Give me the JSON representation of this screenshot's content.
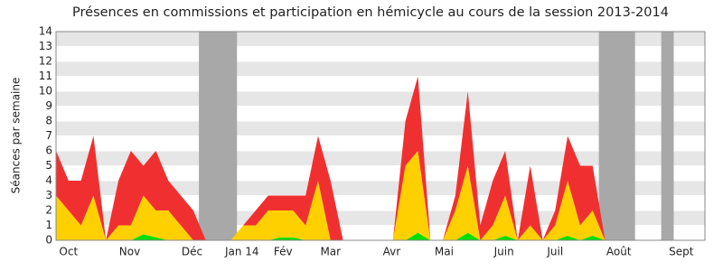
{
  "chart_data": {
    "type": "stacked-area",
    "title": "Présences en commissions et participation en hémicycle au cours de la session 2013-2014",
    "ylabel": "Séances par semaine",
    "x": [
      0,
      1,
      2,
      3,
      4,
      5,
      6,
      7,
      8,
      9,
      10,
      11,
      12,
      13,
      14,
      15,
      16,
      17,
      18,
      19,
      20,
      21,
      22,
      23,
      24,
      25,
      26,
      27,
      28,
      29,
      30,
      31,
      32,
      33,
      34,
      35,
      36,
      37,
      38,
      39,
      40,
      41,
      42,
      43,
      44,
      45,
      46,
      47,
      48,
      49,
      50,
      51,
      52
    ],
    "series": [
      {
        "color": "#00e000",
        "values": [
          0,
          0,
          0,
          0,
          0,
          0,
          0,
          0.4,
          0.2,
          0,
          0,
          0,
          0,
          0,
          0,
          0,
          0,
          0,
          0.2,
          0.2,
          0,
          0,
          0,
          0,
          0,
          0,
          0,
          0,
          0,
          0.5,
          0,
          0,
          0,
          0.5,
          0,
          0,
          0.3,
          0,
          0,
          0,
          0,
          0.3,
          0,
          0.3,
          0,
          0,
          0,
          0,
          0,
          0,
          0,
          0,
          0
        ]
      },
      {
        "color": "#ffd000",
        "values": [
          3,
          2,
          1,
          3,
          0,
          1,
          1,
          2.6,
          1.8,
          2,
          1,
          0,
          0,
          0,
          0,
          1,
          1,
          2,
          1.8,
          1.8,
          1,
          4,
          0,
          0,
          0,
          0,
          0,
          0,
          5,
          5.5,
          0,
          0,
          2,
          4.5,
          0,
          1,
          2.7,
          0,
          1,
          0,
          1,
          3.7,
          1,
          1.7,
          0,
          0,
          0,
          0,
          0,
          0,
          0,
          0,
          0
        ]
      },
      {
        "color": "#f03030",
        "values": [
          3,
          2,
          3,
          4,
          0,
          3,
          5,
          2,
          4,
          2,
          2,
          2,
          0,
          0,
          0,
          0,
          1,
          1,
          1,
          1,
          2,
          3,
          4,
          0,
          0,
          0,
          0,
          0,
          3,
          5,
          0,
          0,
          1,
          5,
          1,
          3,
          3,
          0,
          4,
          0,
          1,
          3,
          4,
          3,
          0,
          0,
          0,
          0,
          0,
          0,
          0,
          0,
          0
        ]
      }
    ],
    "xlim": [
      0,
      52
    ],
    "xticks": [
      {
        "value": 1,
        "label": "Oct"
      },
      {
        "value": 5.9,
        "label": "Nov"
      },
      {
        "value": 10.9,
        "label": "Déc"
      },
      {
        "value": 14.9,
        "label": "Jan 14"
      },
      {
        "value": 18.2,
        "label": "Fév"
      },
      {
        "value": 22,
        "label": "Mar"
      },
      {
        "value": 26.9,
        "label": "Avr"
      },
      {
        "value": 31.1,
        "label": "Mai"
      },
      {
        "value": 35.9,
        "label": "Juin"
      },
      {
        "value": 40,
        "label": "Juil"
      },
      {
        "value": 45.1,
        "label": "Août"
      },
      {
        "value": 50.1,
        "label": "Sept"
      }
    ],
    "bands": [
      [
        11.45,
        14.5
      ],
      [
        43.5,
        46.4
      ],
      [
        48.5,
        49.5
      ]
    ],
    "band_color": "#a8a8a8",
    "ylim": [
      0,
      14
    ],
    "yticks": [
      0,
      1,
      2,
      3,
      4,
      5,
      6,
      7,
      8,
      9,
      10,
      11,
      12,
      13,
      14
    ],
    "grid": true
  }
}
